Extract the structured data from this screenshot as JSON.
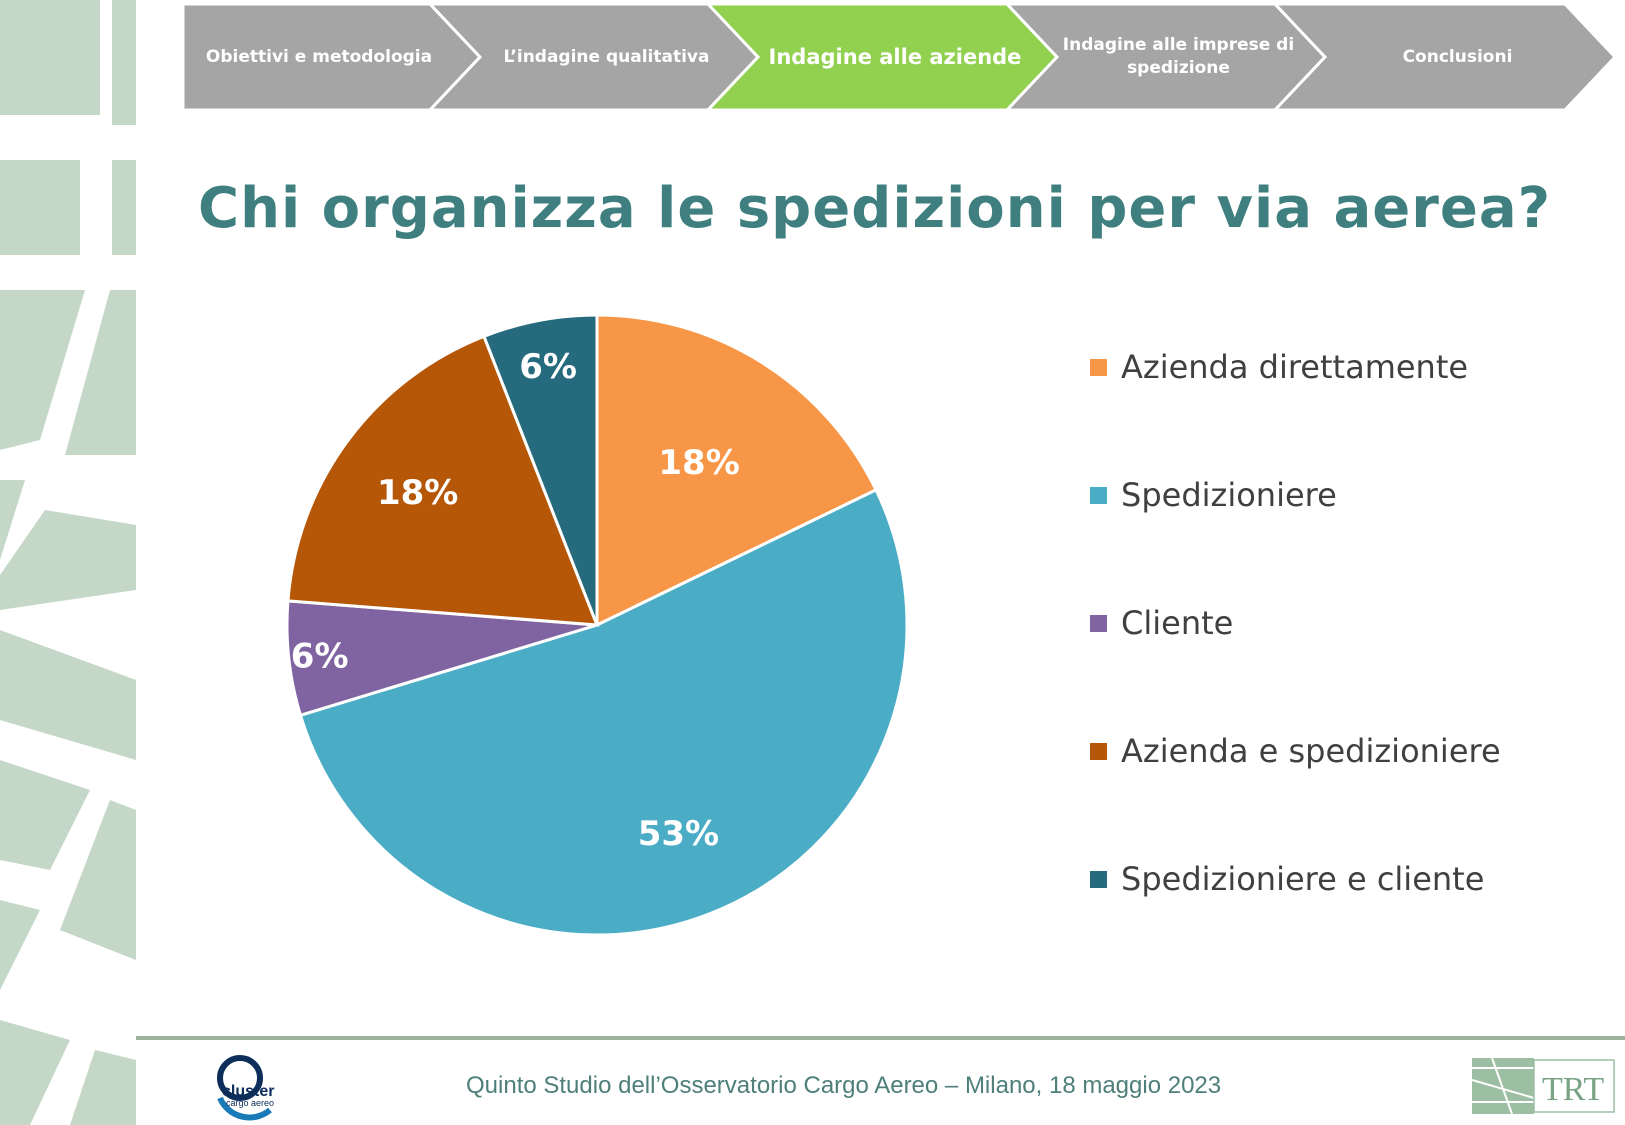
{
  "nav": {
    "steps": [
      {
        "label": "Obiettivi e metodologia",
        "active": false
      },
      {
        "label": "L’indagine qualitativa",
        "active": false
      },
      {
        "label": "Indagine alle aziende",
        "active": true
      },
      {
        "label": "Indagine alle imprese di spedizione",
        "active": false
      },
      {
        "label": "Conclusioni",
        "active": false
      }
    ],
    "colors": {
      "inactive": "#a5a5a5",
      "active": "#92d050"
    }
  },
  "title": "Chi organizza le spedizioni per via aerea?",
  "chart_data": {
    "type": "pie",
    "title": "Chi organizza le spedizioni per via aerea?",
    "categories": [
      "Azienda direttamente",
      "Spedizioniere",
      "Cliente",
      "Azienda e spedizioniere",
      "Spedizioniere e cliente"
    ],
    "values": [
      18,
      53,
      6,
      18,
      6
    ],
    "labels": [
      "18%",
      "53%",
      "6%",
      "18%",
      "6%"
    ],
    "colors": [
      "#f79646",
      "#4bacc6",
      "#8064a2",
      "#b65708",
      "#256a7d"
    ],
    "legend_position": "right"
  },
  "footer": {
    "text": "Quinto Studio dell’Osservatorio Cargo Aereo – Milano, 18 maggio 2023",
    "logo_left": "cluster cargo aereo",
    "logo_right": "TRT"
  }
}
